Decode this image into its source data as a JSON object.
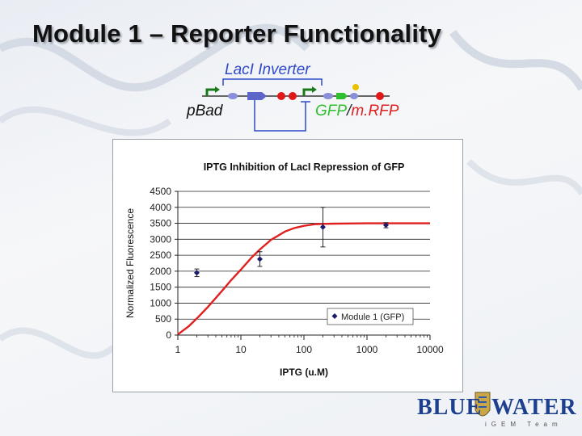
{
  "slide": {
    "title": "Module 1 – Reporter Functionality"
  },
  "circuit": {
    "inverter_label": "LacI Inverter",
    "promoter_label": "pBad",
    "reporter_gfp": "GFP",
    "reporter_slash": "/",
    "reporter_mrfp": "m.RFP",
    "colors": {
      "bracket": "#2f49c9",
      "terminator": "#e01818",
      "gfp": "#2fbf2f"
    }
  },
  "chart_data": {
    "type": "scatter",
    "title": "IPTG Inhibition of LacI Repression of GFP",
    "xlabel": "IPTG (u.M)",
    "ylabel": "Normalized Fluorescence",
    "xscale": "log",
    "xlim": [
      1,
      10000
    ],
    "ylim": [
      0,
      4500
    ],
    "x_ticks": [
      1,
      10,
      100,
      1000,
      10000
    ],
    "x_tick_labels": [
      "1",
      "10",
      "100",
      "1000",
      "10000"
    ],
    "y_ticks": [
      0,
      500,
      1000,
      1500,
      2000,
      2500,
      3000,
      3500,
      4000,
      4500
    ],
    "y_tick_labels": [
      "0",
      "500",
      "1000",
      "1500",
      "2000",
      "2500",
      "3000",
      "3500",
      "4000",
      "4500"
    ],
    "grid": true,
    "legend": "bottom-right",
    "series": [
      {
        "name": "Module 1 (GFP)",
        "color": "#1c1c6e",
        "x": [
          2,
          20,
          200,
          2000
        ],
        "y": [
          1950,
          2380,
          3380,
          3440
        ],
        "error": [
          120,
          230,
          620,
          80
        ]
      }
    ],
    "fit": {
      "color": "#e02020",
      "x": [
        1,
        1.5,
        2,
        3,
        5,
        7,
        10,
        15,
        20,
        30,
        50,
        70,
        100,
        150,
        200,
        300,
        500,
        1000,
        2000,
        5000,
        10000
      ],
      "y": [
        20,
        280,
        520,
        880,
        1380,
        1720,
        2050,
        2440,
        2680,
        2980,
        3240,
        3350,
        3420,
        3470,
        3480,
        3490,
        3495,
        3500,
        3500,
        3500,
        3500
      ]
    }
  },
  "logo": {
    "left_word": "BLUE",
    "right_word": "WATER",
    "subtitle": "iGEM Team"
  }
}
